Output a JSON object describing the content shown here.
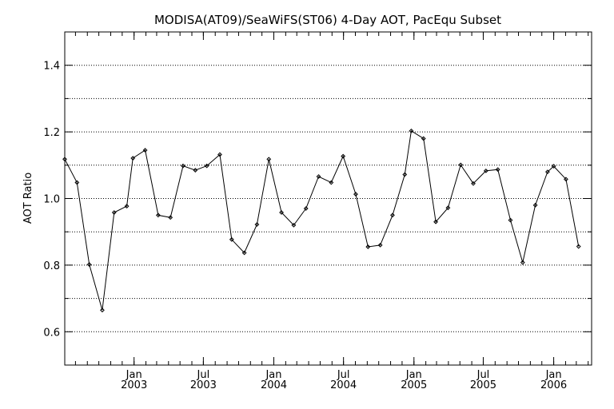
{
  "chart_data": {
    "type": "line",
    "title": "MODISA(AT09)/SeaWiFS(ST06) 4-Day AOT, PacEqu Subset",
    "xlabel": "",
    "ylabel": "AOT Ratio",
    "ylim": [
      0.5,
      1.5
    ],
    "xlim": [
      "2002-07-04",
      "2006-04-10"
    ],
    "y_ticks": [
      "0.6",
      "0.8",
      "1.0",
      "1.2",
      "1.4"
    ],
    "x_ticks": [
      {
        "date": "2003-01-01",
        "label1": "Jan",
        "label2": "2003"
      },
      {
        "date": "2003-07-01",
        "label1": "Jul",
        "label2": "2003"
      },
      {
        "date": "2004-01-01",
        "label1": "Jan",
        "label2": "2004"
      },
      {
        "date": "2004-07-01",
        "label1": "Jul",
        "label2": "2004"
      },
      {
        "date": "2005-01-01",
        "label1": "Jan",
        "label2": "2005"
      },
      {
        "date": "2005-07-01",
        "label1": "Jul",
        "label2": "2005"
      },
      {
        "date": "2006-01-01",
        "label1": "Jan",
        "label2": "2006"
      }
    ],
    "grid": "horizontal dotted",
    "series": [
      {
        "points": [
          [
            "2002-07-04",
            1.118
          ],
          [
            "2002-08-05",
            1.048
          ],
          [
            "2002-09-06",
            0.802
          ],
          [
            "2002-10-10",
            0.665
          ],
          [
            "2002-11-10",
            0.958
          ],
          [
            "2002-12-13",
            0.977
          ],
          [
            "2002-12-29",
            1.121
          ],
          [
            "2003-01-30",
            1.145
          ],
          [
            "2003-03-05",
            0.95
          ],
          [
            "2003-04-06",
            0.943
          ],
          [
            "2003-05-09",
            1.098
          ],
          [
            "2003-06-10",
            1.085
          ],
          [
            "2003-07-10",
            1.098
          ],
          [
            "2003-08-13",
            1.132
          ],
          [
            "2003-09-13",
            0.877
          ],
          [
            "2003-10-16",
            0.837
          ],
          [
            "2003-11-18",
            0.922
          ],
          [
            "2003-12-19",
            1.118
          ],
          [
            "2004-01-21",
            0.958
          ],
          [
            "2004-02-22",
            0.92
          ],
          [
            "2004-03-25",
            0.97
          ],
          [
            "2004-04-27",
            1.066
          ],
          [
            "2004-05-30",
            1.048
          ],
          [
            "2004-06-30",
            1.127
          ],
          [
            "2004-08-02",
            1.013
          ],
          [
            "2004-09-03",
            0.855
          ],
          [
            "2004-10-05",
            0.86
          ],
          [
            "2004-11-06",
            0.95
          ],
          [
            "2004-12-08",
            1.072
          ],
          [
            "2004-12-25",
            1.203
          ],
          [
            "2005-01-26",
            1.18
          ],
          [
            "2005-02-27",
            0.93
          ],
          [
            "2005-03-31",
            0.972
          ],
          [
            "2005-05-03",
            1.101
          ],
          [
            "2005-06-05",
            1.045
          ],
          [
            "2005-07-08",
            1.083
          ],
          [
            "2005-08-08",
            1.087
          ],
          [
            "2005-09-10",
            0.935
          ],
          [
            "2005-10-12",
            0.808
          ],
          [
            "2005-11-14",
            0.98
          ],
          [
            "2005-12-16",
            1.08
          ],
          [
            "2006-01-01",
            1.097
          ],
          [
            "2006-02-02",
            1.058
          ],
          [
            "2006-03-07",
            0.856
          ]
        ]
      }
    ]
  }
}
